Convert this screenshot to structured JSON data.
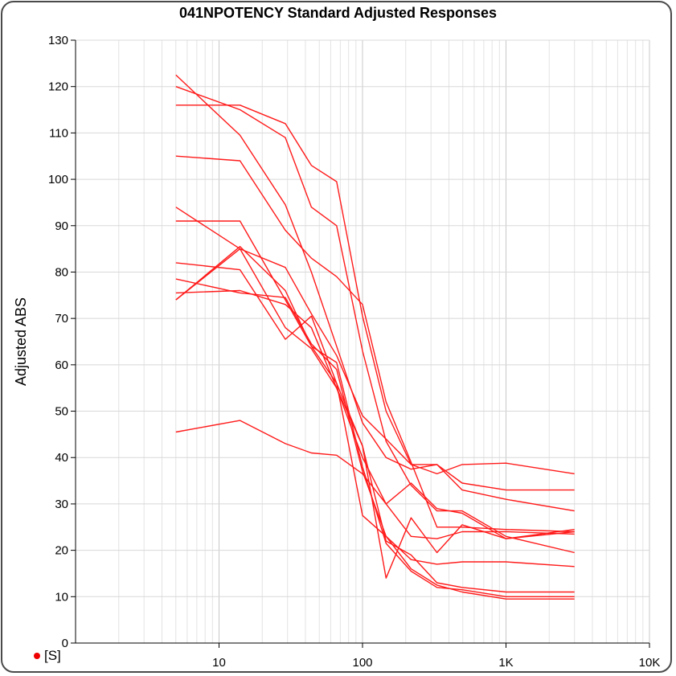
{
  "chart_data": {
    "type": "line",
    "title": "041NPOTENCY Standard Adjusted Responses",
    "ylabel": "Adjusted ABS",
    "xlabel": "",
    "xscale": "log",
    "xlim": [
      1,
      10000
    ],
    "ylim": [
      0,
      130
    ],
    "grid": true,
    "line_color": "#ff1a1a",
    "x_ticks": [
      {
        "value": 10,
        "label": "10"
      },
      {
        "value": 100,
        "label": "100"
      },
      {
        "value": 1000,
        "label": "1K"
      },
      {
        "value": 10000,
        "label": "10K"
      }
    ],
    "y_ticks": [
      {
        "value": 0,
        "label": "0"
      },
      {
        "value": 10,
        "label": "10"
      },
      {
        "value": 20,
        "label": "20"
      },
      {
        "value": 30,
        "label": "30"
      },
      {
        "value": 40,
        "label": "40"
      },
      {
        "value": 50,
        "label": "50"
      },
      {
        "value": 60,
        "label": "60"
      },
      {
        "value": 70,
        "label": "70"
      },
      {
        "value": 80,
        "label": "80"
      },
      {
        "value": 90,
        "label": "90"
      },
      {
        "value": 100,
        "label": "100"
      },
      {
        "value": 110,
        "label": "110"
      },
      {
        "value": 120,
        "label": "120"
      },
      {
        "value": 130,
        "label": "130"
      }
    ],
    "x": [
      5,
      14,
      29,
      44,
      66,
      100,
      146,
      218,
      330,
      495,
      1000,
      3000
    ],
    "series": [
      {
        "values": [
          122.5,
          109.5,
          94.5,
          80.0,
          64.0,
          47.5,
          40.0,
          37.5,
          38.5,
          34.5,
          33.0,
          33.0
        ]
      },
      {
        "values": [
          120.0,
          115.0,
          109.0,
          94.0,
          90.0,
          63.0,
          43.5,
          34.0,
          28.5,
          28.5,
          23.0,
          19.5
        ]
      },
      {
        "values": [
          116.0,
          116.0,
          112.0,
          103.0,
          99.5,
          70.5,
          50.0,
          38.5,
          38.5,
          33.0,
          31.0,
          28.5
        ]
      },
      {
        "values": [
          105.0,
          104.0,
          89.0,
          83.0,
          79.0,
          73.0,
          52.0,
          39.0,
          25.0,
          25.0,
          24.5,
          24.0
        ]
      },
      {
        "values": [
          94.0,
          85.0,
          81.0,
          71.0,
          62.0,
          49.0,
          44.0,
          38.5,
          36.5,
          38.5,
          38.8,
          36.5
        ]
      },
      {
        "values": [
          91.0,
          91.0,
          74.0,
          64.0,
          56.0,
          27.5,
          23.0,
          18.0,
          17.0,
          17.5,
          17.5,
          16.5
        ]
      },
      {
        "values": [
          82.0,
          80.5,
          65.5,
          70.5,
          56.0,
          42.5,
          14.0,
          27.0,
          19.5,
          25.5,
          22.5,
          24.5
        ]
      },
      {
        "values": [
          78.5,
          75.5,
          74.5,
          64.5,
          59.0,
          37.0,
          23.0,
          16.0,
          12.5,
          11.0,
          9.5,
          9.5
        ]
      },
      {
        "values": [
          75.5,
          76.0,
          73.0,
          68.0,
          55.0,
          42.5,
          22.0,
          19.0,
          13.0,
          12.0,
          11.0,
          11.0
        ]
      },
      {
        "values": [
          74.0,
          85.0,
          68.0,
          63.5,
          55.0,
          40.0,
          30.0,
          34.5,
          29.0,
          28.0,
          22.5,
          24.0
        ]
      },
      {
        "values": [
          74.0,
          85.5,
          76.0,
          64.0,
          60.5,
          38.0,
          21.5,
          15.5,
          12.0,
          11.5,
          10.0,
          10.0
        ]
      },
      {
        "values": [
          45.5,
          48.0,
          43.0,
          41.0,
          40.5,
          36.5,
          30.0,
          23.0,
          22.5,
          24.0,
          24.0,
          23.5
        ]
      }
    ]
  },
  "legend": {
    "label": "[S]",
    "color": "#ee0000"
  }
}
